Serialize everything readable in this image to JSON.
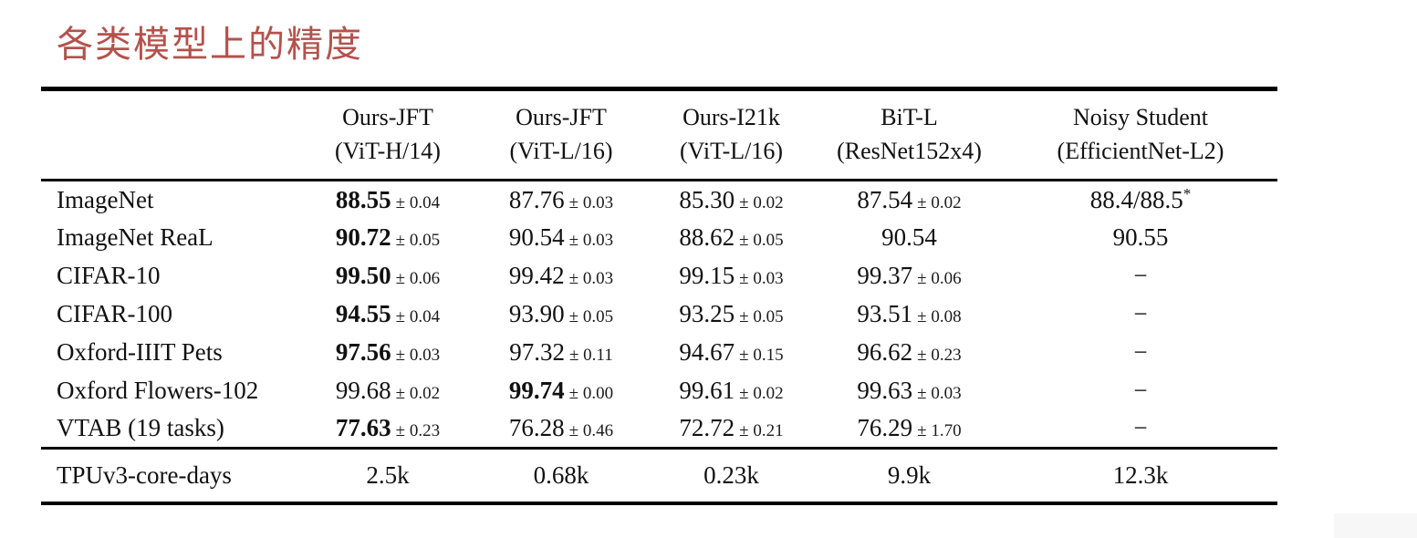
{
  "page": {
    "title": "各类模型上的精度",
    "title_color": "#b3524d",
    "text_color": "#111111",
    "background_color": "#ffffff"
  },
  "table": {
    "columns": [
      {
        "line1": "",
        "line2": ""
      },
      {
        "line1": "Ours-JFT",
        "line2": "(ViT-H/14)"
      },
      {
        "line1": "Ours-JFT",
        "line2": "(ViT-L/16)"
      },
      {
        "line1": "Ours-I21k",
        "line2": "(ViT-L/16)"
      },
      {
        "line1": "BiT-L",
        "line2": "(ResNet152x4)"
      },
      {
        "line1": "Noisy Student",
        "line2": "(EfficientNet-L2)"
      }
    ],
    "rows": [
      {
        "label": "ImageNet",
        "cells": [
          {
            "value": "88.55",
            "pm": "0.04",
            "bold": true
          },
          {
            "value": "87.76",
            "pm": "0.03"
          },
          {
            "value": "85.30",
            "pm": "0.02"
          },
          {
            "value": "87.54",
            "pm": "0.02"
          },
          {
            "value": "88.4/88.5",
            "sup": "*"
          }
        ]
      },
      {
        "label": "ImageNet ReaL",
        "cells": [
          {
            "value": "90.72",
            "pm": "0.05",
            "bold": true
          },
          {
            "value": "90.54",
            "pm": "0.03"
          },
          {
            "value": "88.62",
            "pm": "0.05"
          },
          {
            "value": "90.54"
          },
          {
            "value": "90.55"
          }
        ]
      },
      {
        "label": "CIFAR-10",
        "cells": [
          {
            "value": "99.50",
            "pm": "0.06",
            "bold": true
          },
          {
            "value": "99.42",
            "pm": "0.03"
          },
          {
            "value": "99.15",
            "pm": "0.03"
          },
          {
            "value": "99.37",
            "pm": "0.06"
          },
          {
            "value": "−"
          }
        ]
      },
      {
        "label": "CIFAR-100",
        "cells": [
          {
            "value": "94.55",
            "pm": "0.04",
            "bold": true
          },
          {
            "value": "93.90",
            "pm": "0.05"
          },
          {
            "value": "93.25",
            "pm": "0.05"
          },
          {
            "value": "93.51",
            "pm": "0.08"
          },
          {
            "value": "−"
          }
        ]
      },
      {
        "label": "Oxford-IIIT Pets",
        "cells": [
          {
            "value": "97.56",
            "pm": "0.03",
            "bold": true
          },
          {
            "value": "97.32",
            "pm": "0.11"
          },
          {
            "value": "94.67",
            "pm": "0.15"
          },
          {
            "value": "96.62",
            "pm": "0.23"
          },
          {
            "value": "−"
          }
        ]
      },
      {
        "label": "Oxford Flowers-102",
        "cells": [
          {
            "value": "99.68",
            "pm": "0.02"
          },
          {
            "value": "99.74",
            "pm": "0.00",
            "bold": true
          },
          {
            "value": "99.61",
            "pm": "0.02"
          },
          {
            "value": "99.63",
            "pm": "0.03"
          },
          {
            "value": "−"
          }
        ]
      },
      {
        "label": "VTAB (19 tasks)",
        "cells": [
          {
            "value": "77.63",
            "pm": "0.23",
            "bold": true
          },
          {
            "value": "76.28",
            "pm": "0.46"
          },
          {
            "value": "72.72",
            "pm": "0.21"
          },
          {
            "value": "76.29",
            "pm": "1.70"
          },
          {
            "value": "−"
          }
        ]
      }
    ],
    "footer": {
      "label": "TPUv3-core-days",
      "cells": [
        "2.5k",
        "0.68k",
        "0.23k",
        "9.9k",
        "12.3k"
      ]
    }
  }
}
